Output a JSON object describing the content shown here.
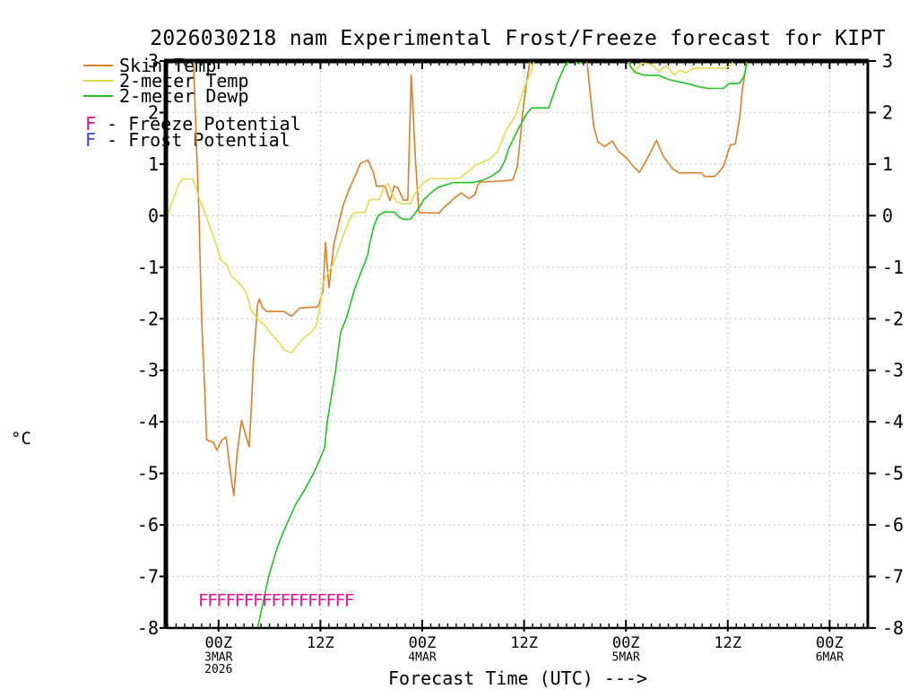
{
  "title": "2026030218 nam Experimental Frost/Freeze forecast for KIPT",
  "unit_label": "°C",
  "legend": {
    "series": [
      {
        "label": "Skin Temp",
        "color": "#DC7E28"
      },
      {
        "label": "2-meter Temp",
        "color": "#E0DC50"
      },
      {
        "label": "2-meter Dewp",
        "color": "#22C022"
      }
    ],
    "potentials": [
      {
        "marker": "F",
        "separator": "-",
        "label": "Freeze Potential",
        "color": "#E8118C"
      },
      {
        "marker": "F",
        "separator": "-",
        "label": "Frost Potential",
        "color": "#4040E8"
      }
    ]
  },
  "x_axis": {
    "label": "Forecast Time (UTC) --->",
    "range_hours": [
      0,
      82.5
    ],
    "minor_tick_every_hours": 1,
    "major_ticks": [
      {
        "t": 6,
        "lines": [
          "00Z",
          "3MAR",
          "2026"
        ]
      },
      {
        "t": 18,
        "lines": [
          "12Z"
        ]
      },
      {
        "t": 30,
        "lines": [
          "00Z",
          "4MAR"
        ]
      },
      {
        "t": 42,
        "lines": [
          "12Z"
        ]
      },
      {
        "t": 54,
        "lines": [
          "00Z",
          "5MAR"
        ]
      },
      {
        "t": 66,
        "lines": [
          "12Z"
        ]
      },
      {
        "t": 78,
        "lines": [
          "00Z",
          "6MAR"
        ]
      }
    ]
  },
  "y_axis": {
    "ticks": [
      3,
      2,
      1,
      0,
      -1,
      -2,
      -3,
      -4,
      -5,
      -6,
      -7,
      -8
    ],
    "range": [
      -8,
      3
    ]
  },
  "chart_data": {
    "type": "line",
    "title": "2026030218 nam Experimental Frost/Freeze forecast for KIPT",
    "xlabel": "Forecast Time (UTC) --->",
    "ylabel": "°C",
    "x_unit": "hours, t=0 at left edge (run 2026030218, ticks at 00Z/12Z)",
    "xlim": [
      0,
      82.5
    ],
    "ylim": [
      -8,
      3
    ],
    "grid": true,
    "legend_position": "top-left",
    "series": [
      {
        "name": "Skin Temp",
        "color": "#DC7E28",
        "points": [
          [
            0,
            4.0
          ],
          [
            3.0,
            3.2
          ],
          [
            3.7,
            0.0
          ],
          [
            4.0,
            -2.0
          ],
          [
            4.4,
            -3.5
          ],
          [
            4.6,
            -4.35
          ],
          [
            5.4,
            -4.4
          ],
          [
            5.8,
            -4.55
          ],
          [
            6.4,
            -4.35
          ],
          [
            6.9,
            -4.3
          ],
          [
            7.4,
            -5.0
          ],
          [
            7.8,
            -5.43
          ],
          [
            8.2,
            -4.6
          ],
          [
            8.7,
            -3.97
          ],
          [
            9.1,
            -4.2
          ],
          [
            9.6,
            -4.49
          ],
          [
            9.9,
            -3.6
          ],
          [
            10.1,
            -2.84
          ],
          [
            10.6,
            -1.74
          ],
          [
            10.8,
            -1.62
          ],
          [
            11.2,
            -1.79
          ],
          [
            11.7,
            -1.86
          ],
          [
            13.7,
            -1.86
          ],
          [
            14.6,
            -1.95
          ],
          [
            15.6,
            -1.79
          ],
          [
            17.7,
            -1.77
          ],
          [
            18.3,
            -1.48
          ],
          [
            18.6,
            -0.52
          ],
          [
            19.0,
            -1.4
          ],
          [
            19.6,
            -0.55
          ],
          [
            20.2,
            -0.12
          ],
          [
            20.7,
            0.21
          ],
          [
            21.4,
            0.52
          ],
          [
            22.2,
            0.81
          ],
          [
            22.7,
            1.01
          ],
          [
            23.6,
            1.08
          ],
          [
            24.3,
            0.81
          ],
          [
            24.6,
            0.57
          ],
          [
            25.6,
            0.57
          ],
          [
            26.2,
            0.29
          ],
          [
            26.7,
            0.57
          ],
          [
            27.1,
            0.55
          ],
          [
            27.8,
            0.3
          ],
          [
            28.3,
            0.3
          ],
          [
            28.7,
            2.73
          ],
          [
            29.2,
            1.1
          ],
          [
            29.6,
            0.06
          ],
          [
            32.0,
            0.05
          ],
          [
            32.5,
            0.15
          ],
          [
            33.3,
            0.26
          ],
          [
            33.8,
            0.35
          ],
          [
            34.6,
            0.44
          ],
          [
            35.5,
            0.33
          ],
          [
            36.2,
            0.41
          ],
          [
            36.6,
            0.61
          ],
          [
            36.8,
            0.65
          ],
          [
            40.1,
            0.68
          ],
          [
            40.7,
            0.7
          ],
          [
            41.2,
            0.95
          ],
          [
            41.5,
            1.42
          ],
          [
            41.8,
            1.95
          ],
          [
            42.4,
            2.7
          ],
          [
            42.7,
            3.0
          ],
          [
            43.0,
            3.6
          ],
          [
            49.1,
            3.6
          ],
          [
            49.4,
            3.0
          ],
          [
            50.2,
            1.74
          ],
          [
            50.7,
            1.43
          ],
          [
            51.5,
            1.34
          ],
          [
            52.4,
            1.45
          ],
          [
            53.1,
            1.25
          ],
          [
            54.2,
            1.1
          ],
          [
            54.9,
            0.95
          ],
          [
            55.6,
            0.84
          ],
          [
            56.5,
            1.1
          ],
          [
            57.6,
            1.46
          ],
          [
            58.4,
            1.15
          ],
          [
            59.5,
            0.91
          ],
          [
            60.3,
            0.83
          ],
          [
            62.9,
            0.83
          ],
          [
            63.3,
            0.76
          ],
          [
            64.4,
            0.76
          ],
          [
            65.0,
            0.85
          ],
          [
            65.5,
            0.96
          ],
          [
            66.3,
            1.37
          ],
          [
            66.9,
            1.39
          ],
          [
            67.4,
            1.91
          ],
          [
            67.7,
            2.42
          ],
          [
            68.2,
            2.96
          ],
          [
            68.6,
            3.7
          ]
        ]
      },
      {
        "name": "2-meter Temp",
        "color": "#E0DC50",
        "points": [
          [
            0,
            0.0
          ],
          [
            0.6,
            0.3
          ],
          [
            1.3,
            0.6
          ],
          [
            1.8,
            0.71
          ],
          [
            3.0,
            0.71
          ],
          [
            3.7,
            0.35
          ],
          [
            4.5,
            0.0
          ],
          [
            5.6,
            -0.5
          ],
          [
            6.3,
            -0.87
          ],
          [
            7.0,
            -0.96
          ],
          [
            7.5,
            -1.17
          ],
          [
            8.6,
            -1.34
          ],
          [
            9.3,
            -1.5
          ],
          [
            9.8,
            -1.83
          ],
          [
            10.6,
            -2.0
          ],
          [
            11.4,
            -2.12
          ],
          [
            12.3,
            -2.32
          ],
          [
            13.2,
            -2.47
          ],
          [
            13.7,
            -2.61
          ],
          [
            14.6,
            -2.66
          ],
          [
            15.4,
            -2.49
          ],
          [
            16.0,
            -2.38
          ],
          [
            16.9,
            -2.26
          ],
          [
            17.5,
            -2.14
          ],
          [
            18.0,
            -1.74
          ],
          [
            18.3,
            -1.3
          ],
          [
            18.9,
            -1.1
          ],
          [
            19.5,
            -0.95
          ],
          [
            20.6,
            -0.43
          ],
          [
            21.4,
            -0.09
          ],
          [
            22.0,
            0.06
          ],
          [
            23.2,
            0.06
          ],
          [
            23.8,
            0.31
          ],
          [
            24.9,
            0.31
          ],
          [
            25.4,
            0.52
          ],
          [
            26.0,
            0.62
          ],
          [
            26.5,
            0.41
          ],
          [
            27.0,
            0.26
          ],
          [
            27.8,
            0.23
          ],
          [
            28.6,
            0.23
          ],
          [
            29.2,
            0.44
          ],
          [
            30.1,
            0.64
          ],
          [
            31.0,
            0.72
          ],
          [
            34.3,
            0.72
          ],
          [
            34.9,
            0.78
          ],
          [
            35.7,
            0.9
          ],
          [
            36.4,
            0.99
          ],
          [
            37.1,
            1.04
          ],
          [
            38.0,
            1.1
          ],
          [
            38.9,
            1.25
          ],
          [
            39.9,
            1.65
          ],
          [
            41.0,
            1.95
          ],
          [
            42.0,
            2.47
          ],
          [
            42.8,
            2.78
          ],
          [
            43.1,
            2.96
          ],
          [
            43.5,
            3.4
          ],
          [
            54.0,
            3.4
          ],
          [
            54.4,
            2.96
          ],
          [
            55.0,
            2.77
          ],
          [
            55.8,
            2.96
          ],
          [
            56.5,
            2.95
          ],
          [
            57.1,
            2.93
          ],
          [
            57.9,
            2.79
          ],
          [
            58.7,
            2.91
          ],
          [
            59.7,
            2.73
          ],
          [
            60.3,
            2.82
          ],
          [
            61.1,
            2.77
          ],
          [
            61.9,
            2.85
          ],
          [
            62.3,
            2.86
          ],
          [
            65.8,
            2.86
          ],
          [
            66.5,
            2.94
          ],
          [
            67.1,
            3.3
          ]
        ]
      },
      {
        "name": "2-meter Dewp",
        "color": "#22C022",
        "points": [
          [
            10.3,
            -8.4
          ],
          [
            10.6,
            -8.0
          ],
          [
            11.9,
            -7.0
          ],
          [
            12.8,
            -6.5
          ],
          [
            13.3,
            -6.27
          ],
          [
            14.0,
            -6.0
          ],
          [
            15.1,
            -5.6
          ],
          [
            16.2,
            -5.3
          ],
          [
            17.2,
            -5.0
          ],
          [
            18.0,
            -4.7
          ],
          [
            18.5,
            -4.5
          ],
          [
            18.8,
            -4.0
          ],
          [
            19.3,
            -3.5
          ],
          [
            19.8,
            -3.0
          ],
          [
            20.1,
            -2.6
          ],
          [
            20.4,
            -2.26
          ],
          [
            21.1,
            -1.97
          ],
          [
            22.0,
            -1.44
          ],
          [
            22.5,
            -1.22
          ],
          [
            23.0,
            -1.01
          ],
          [
            23.6,
            -0.75
          ],
          [
            23.8,
            -0.55
          ],
          [
            24.3,
            -0.2
          ],
          [
            24.8,
            0.0
          ],
          [
            25.5,
            0.07
          ],
          [
            26.7,
            0.07
          ],
          [
            27.3,
            -0.03
          ],
          [
            27.8,
            -0.07
          ],
          [
            28.6,
            -0.07
          ],
          [
            29.4,
            0.1
          ],
          [
            30.2,
            0.31
          ],
          [
            31.0,
            0.44
          ],
          [
            32.0,
            0.56
          ],
          [
            33.1,
            0.61
          ],
          [
            33.6,
            0.64
          ],
          [
            35.9,
            0.64
          ],
          [
            37.0,
            0.68
          ],
          [
            38.0,
            0.75
          ],
          [
            39.1,
            0.87
          ],
          [
            39.7,
            1.05
          ],
          [
            40.2,
            1.31
          ],
          [
            41.5,
            1.74
          ],
          [
            42.4,
            2.0
          ],
          [
            42.9,
            2.09
          ],
          [
            44.9,
            2.09
          ],
          [
            45.9,
            2.56
          ],
          [
            46.8,
            2.91
          ],
          [
            47.3,
            3.0
          ],
          [
            47.9,
            3.0
          ],
          [
            48.4,
            2.95
          ],
          [
            48.9,
            3.0
          ],
          [
            54.2,
            3.0
          ],
          [
            54.7,
            2.85
          ],
          [
            55.2,
            2.77
          ],
          [
            56.3,
            2.72
          ],
          [
            57.9,
            2.72
          ],
          [
            58.9,
            2.65
          ],
          [
            59.8,
            2.61
          ],
          [
            61.3,
            2.56
          ],
          [
            62.6,
            2.5
          ],
          [
            63.7,
            2.47
          ],
          [
            65.5,
            2.47
          ],
          [
            66.1,
            2.56
          ],
          [
            67.4,
            2.57
          ],
          [
            67.9,
            2.7
          ],
          [
            68.2,
            2.9
          ],
          [
            68.6,
            3.3
          ]
        ]
      }
    ],
    "freeze_markers": {
      "symbol": "F",
      "color": "#E8118C",
      "value_c": -7.45,
      "t_start": 4.2,
      "t_end": 21.4,
      "count": 17
    },
    "frost_markers": {
      "symbol": "F",
      "color": "#4040E8",
      "count": 0
    }
  },
  "style_colors": {
    "frame": "#000000",
    "grid": "#bbbbbb",
    "background": "#ffffff"
  }
}
